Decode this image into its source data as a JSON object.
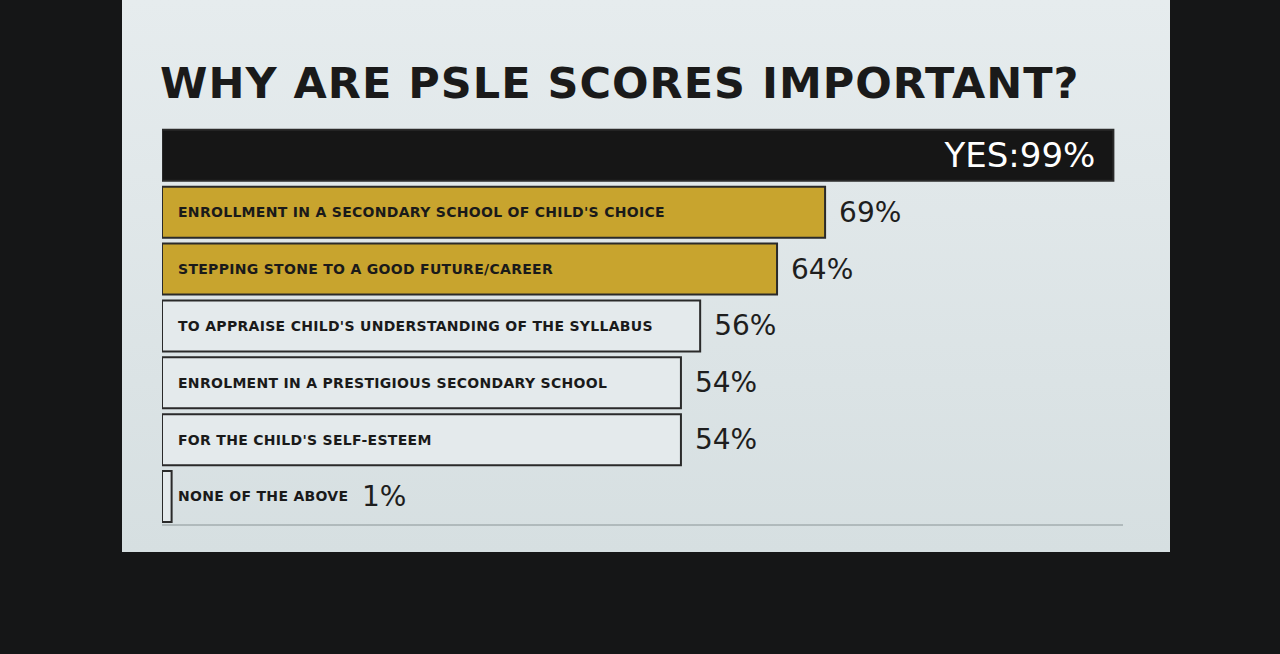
{
  "chart_data": {
    "type": "bar",
    "title": "WHY ARE PSLE SCORES IMPORTANT?",
    "orientation": "horizontal",
    "categories": [
      null,
      "ENROLLMENT IN A SECONDARY SCHOOL OF CHILD'S CHOICE",
      "STEPPING STONE TO A GOOD FUTURE/CAREER",
      "TO APPRAISE CHILD'S UNDERSTANDING OF THE SYLLABUS",
      "ENROLMENT IN A PRESTIGIOUS SECONDARY SCHOOL",
      "FOR THE CHILD'S SELF-ESTEEM",
      "NONE OF THE ABOVE"
    ],
    "values": [
      99,
      69,
      64,
      56,
      54,
      54,
      1
    ],
    "value_labels": [
      "YES:99%",
      "69%",
      "64%",
      "56%",
      "54%",
      "54%",
      "1%"
    ],
    "colors": [
      "#161616",
      "#c8a42e",
      "#c8a42e",
      "#e4eaec",
      "#e4eaec",
      "#e4eaec",
      "#e4eaec"
    ],
    "xlim": [
      0,
      100
    ],
    "xticks": [
      0,
      100
    ],
    "tick_labels": false,
    "data_labels": true,
    "grid": false
  }
}
